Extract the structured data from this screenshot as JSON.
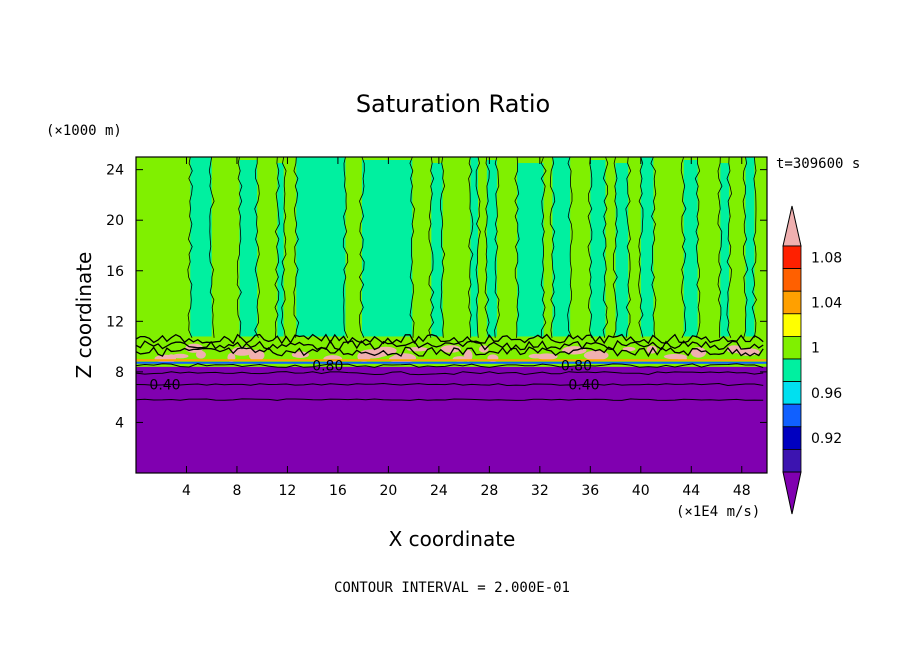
{
  "chart_data": {
    "type": "heatmap",
    "title": "Saturation Ratio",
    "xlabel": "X coordinate",
    "ylabel": "Z coordinate",
    "x_unit": "(×1E4 m/s)",
    "y_unit": "(×1000 m)",
    "time_label": "t=309600 s",
    "footer": "CONTOUR INTERVAL = 2.000E-01",
    "xlim": [
      0,
      50
    ],
    "ylim": [
      0,
      25
    ],
    "x_ticks": [
      4,
      8,
      12,
      16,
      20,
      24,
      28,
      32,
      36,
      40,
      44,
      48
    ],
    "y_ticks": [
      4,
      8,
      12,
      16,
      20,
      24
    ],
    "grid": false,
    "colorbar": {
      "placement": "right",
      "tick_labels": [
        "0.92",
        "0.96",
        "1",
        "1.04",
        "1.08"
      ],
      "levels": [
        {
          "lo": null,
          "hi": 0.9,
          "color": "#8000b0"
        },
        {
          "lo": 0.9,
          "hi": 0.92,
          "color": "#3c14b0"
        },
        {
          "lo": 0.92,
          "hi": 0.94,
          "color": "#0000c0"
        },
        {
          "lo": 0.94,
          "hi": 0.96,
          "color": "#1060ff"
        },
        {
          "lo": 0.96,
          "hi": 0.98,
          "color": "#00e0f0"
        },
        {
          "lo": 0.98,
          "hi": 1.0,
          "color": "#00f0a0"
        },
        {
          "lo": 1.0,
          "hi": 1.02,
          "color": "#80f000"
        },
        {
          "lo": 1.02,
          "hi": 1.04,
          "color": "#ffff00"
        },
        {
          "lo": 1.04,
          "hi": 1.06,
          "color": "#ffa000"
        },
        {
          "lo": 1.06,
          "hi": 1.08,
          "color": "#ff6000"
        },
        {
          "lo": 1.08,
          "hi": 1.1,
          "color": "#ff2000"
        },
        {
          "lo": 1.1,
          "hi": null,
          "color": "#f0b0b0"
        }
      ]
    },
    "contour_labels": [
      {
        "text": "0.80",
        "x": 15.2,
        "z": 8.5
      },
      {
        "text": "0.80",
        "x": 34.9,
        "z": 8.5
      },
      {
        "text": "0.40",
        "x": 2.3,
        "z": 7.0
      },
      {
        "text": "0.40",
        "x": 35.5,
        "z": 7.0
      }
    ],
    "regions": {
      "dry_layer_top_z": 8.4,
      "cloud_layer_z": [
        8.4,
        10.8
      ],
      "upper_bg_level": 1.0,
      "upper_columns_level": 0.98,
      "subsaturated_columns_x": [
        [
          4.3,
          6.0
        ],
        [
          8.2,
          9.6
        ],
        [
          11.2,
          11.7
        ],
        [
          12.7,
          16.6
        ],
        [
          17.9,
          21.9
        ],
        [
          23.4,
          24.3
        ],
        [
          26.5,
          27.1
        ],
        [
          27.8,
          28.6
        ],
        [
          30.2,
          32.3
        ],
        [
          33.0,
          34.4
        ],
        [
          36.0,
          37.2
        ],
        [
          38.0,
          39.0
        ],
        [
          40.0,
          41.0
        ],
        [
          43.4,
          44.5
        ],
        [
          46.3,
          47.0
        ],
        [
          48.3,
          49.0
        ]
      ]
    }
  }
}
